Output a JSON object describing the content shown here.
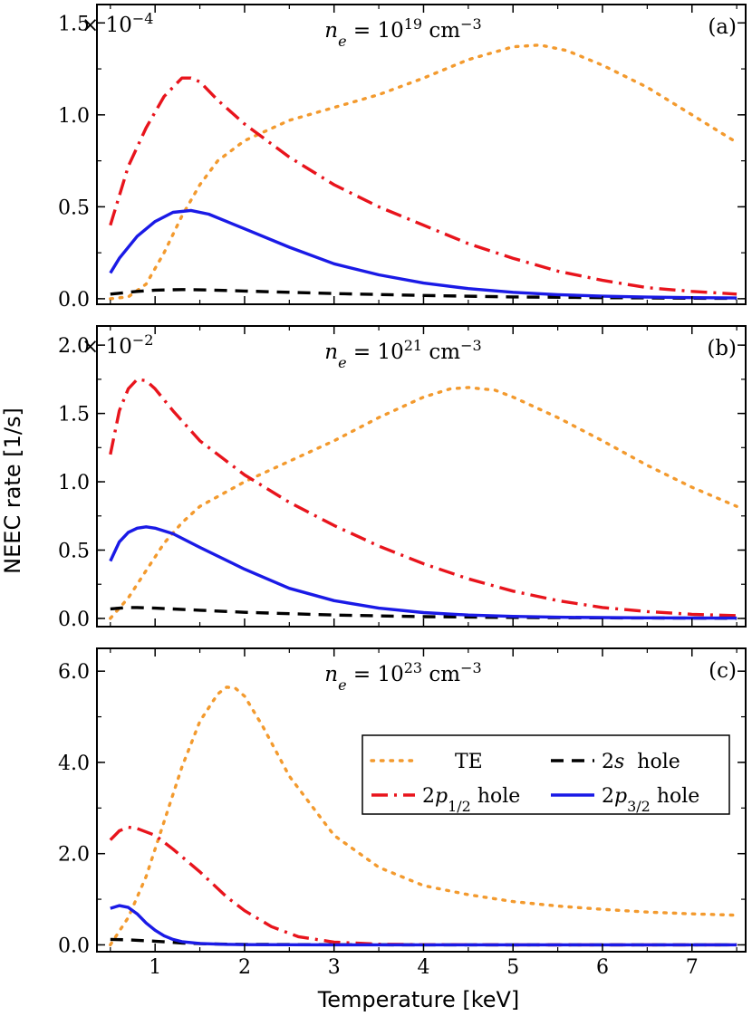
{
  "figure": {
    "xlabel": "Temperature [keV]",
    "ylabel": "NEEC rate [1/s]"
  },
  "legend": [
    {
      "label": "TE",
      "color": "#f39a2e",
      "style": "dotted"
    },
    {
      "label": "2s  hole",
      "color": "#000000",
      "style": "dashed"
    },
    {
      "label": "2p1/2 hole",
      "color": "#e8141c",
      "style": "dashdot"
    },
    {
      "label": "2p3/2 hole",
      "color": "#1a1ae6",
      "style": "solid"
    }
  ],
  "chart_data": [
    {
      "type": "line",
      "panel": "(a)",
      "density_label": "ne = 10^19 cm^-3",
      "multiplier": "× 10^-4",
      "xlim": [
        0.35,
        7.6
      ],
      "ylim": [
        -0.03,
        1.6
      ],
      "x_ticks": [
        1,
        2,
        3,
        4,
        5,
        6,
        7
      ],
      "y_ticks": [
        "0.0",
        "0.5",
        "1.0",
        "1.5"
      ],
      "series": [
        {
          "name": "TE",
          "x": [
            0.5,
            0.7,
            0.9,
            1.1,
            1.3,
            1.5,
            1.7,
            2.0,
            2.5,
            3.0,
            3.5,
            4.0,
            4.5,
            5.0,
            5.3,
            5.6,
            6.0,
            6.5,
            7.0,
            7.5
          ],
          "y": [
            0.0,
            0.01,
            0.08,
            0.25,
            0.45,
            0.62,
            0.75,
            0.86,
            0.97,
            1.04,
            1.11,
            1.2,
            1.3,
            1.37,
            1.38,
            1.35,
            1.27,
            1.15,
            1.0,
            0.85
          ]
        },
        {
          "name": "2s hole",
          "x": [
            0.5,
            0.8,
            1.0,
            1.3,
            1.6,
            2.0,
            3.0,
            4.0,
            5.0,
            6.0,
            7.0,
            7.5
          ],
          "y": [
            0.025,
            0.04,
            0.047,
            0.05,
            0.048,
            0.042,
            0.028,
            0.018,
            0.01,
            0.006,
            0.003,
            0.002
          ]
        },
        {
          "name": "2p1/2 hole",
          "x": [
            0.5,
            0.7,
            0.9,
            1.1,
            1.3,
            1.4,
            1.5,
            1.7,
            2.0,
            2.5,
            3.0,
            3.5,
            4.0,
            4.5,
            5.0,
            5.5,
            6.0,
            6.5,
            7.0,
            7.5
          ],
          "y": [
            0.4,
            0.72,
            0.93,
            1.1,
            1.2,
            1.2,
            1.18,
            1.08,
            0.95,
            0.77,
            0.62,
            0.5,
            0.4,
            0.3,
            0.22,
            0.15,
            0.1,
            0.06,
            0.04,
            0.025
          ]
        },
        {
          "name": "2p3/2 hole",
          "x": [
            0.5,
            0.6,
            0.8,
            1.0,
            1.2,
            1.4,
            1.6,
            2.0,
            2.5,
            3.0,
            3.5,
            4.0,
            4.5,
            5.0,
            5.5,
            6.0,
            6.5,
            7.0,
            7.5
          ],
          "y": [
            0.14,
            0.22,
            0.34,
            0.42,
            0.47,
            0.48,
            0.46,
            0.38,
            0.28,
            0.19,
            0.13,
            0.085,
            0.055,
            0.035,
            0.022,
            0.014,
            0.009,
            0.006,
            0.004
          ]
        }
      ]
    },
    {
      "type": "line",
      "panel": "(b)",
      "density_label": "ne = 10^21 cm^-3",
      "multiplier": "× 10^-2",
      "xlim": [
        0.35,
        7.6
      ],
      "ylim": [
        -0.06,
        2.14
      ],
      "x_ticks": [
        1,
        2,
        3,
        4,
        5,
        6,
        7
      ],
      "y_ticks": [
        "0.0",
        "0.5",
        "1.0",
        "1.5",
        "2.0"
      ],
      "series": [
        {
          "name": "TE",
          "x": [
            0.5,
            0.7,
            0.9,
            1.1,
            1.3,
            1.5,
            2.0,
            2.5,
            3.0,
            3.5,
            4.0,
            4.3,
            4.5,
            4.8,
            5.0,
            5.5,
            6.0,
            6.5,
            7.0,
            7.5
          ],
          "y": [
            0.0,
            0.15,
            0.35,
            0.55,
            0.7,
            0.82,
            1.0,
            1.15,
            1.3,
            1.47,
            1.62,
            1.68,
            1.69,
            1.67,
            1.62,
            1.47,
            1.3,
            1.12,
            0.96,
            0.82
          ]
        },
        {
          "name": "2s hole",
          "x": [
            0.5,
            0.7,
            0.8,
            1.0,
            1.5,
            2.0,
            3.0,
            4.0,
            5.0,
            6.0,
            7.0,
            7.5
          ],
          "y": [
            0.07,
            0.08,
            0.08,
            0.075,
            0.06,
            0.045,
            0.025,
            0.013,
            0.007,
            0.004,
            0.002,
            0.001
          ]
        },
        {
          "name": "2p1/2 hole",
          "x": [
            0.5,
            0.6,
            0.7,
            0.8,
            0.9,
            1.0,
            1.2,
            1.5,
            2.0,
            2.5,
            3.0,
            3.5,
            4.0,
            4.5,
            5.0,
            5.5,
            6.0,
            6.5,
            7.0,
            7.5
          ],
          "y": [
            1.2,
            1.52,
            1.68,
            1.75,
            1.74,
            1.68,
            1.52,
            1.3,
            1.05,
            0.85,
            0.68,
            0.53,
            0.4,
            0.29,
            0.2,
            0.13,
            0.08,
            0.05,
            0.03,
            0.02
          ]
        },
        {
          "name": "2p3/2 hole",
          "x": [
            0.5,
            0.6,
            0.7,
            0.8,
            0.9,
            1.0,
            1.2,
            1.5,
            2.0,
            2.5,
            3.0,
            3.5,
            4.0,
            4.5,
            5.0,
            5.5,
            6.0,
            6.5,
            7.0,
            7.5
          ],
          "y": [
            0.42,
            0.56,
            0.63,
            0.66,
            0.67,
            0.66,
            0.62,
            0.52,
            0.36,
            0.22,
            0.13,
            0.075,
            0.043,
            0.025,
            0.015,
            0.009,
            0.006,
            0.004,
            0.003,
            0.002
          ]
        }
      ]
    },
    {
      "type": "line",
      "panel": "(c)",
      "density_label": "ne = 10^23 cm^-3",
      "multiplier": "",
      "xlim": [
        0.35,
        7.6
      ],
      "ylim": [
        -0.15,
        6.5
      ],
      "x_ticks": [
        1,
        2,
        3,
        4,
        5,
        6,
        7
      ],
      "y_ticks": [
        "0.0",
        "2.0",
        "4.0",
        "6.0"
      ],
      "series": [
        {
          "name": "TE",
          "x": [
            0.5,
            0.7,
            0.9,
            1.1,
            1.3,
            1.5,
            1.7,
            1.8,
            1.9,
            2.0,
            2.2,
            2.5,
            3.0,
            3.5,
            4.0,
            4.5,
            5.0,
            5.5,
            6.0,
            6.5,
            7.0,
            7.5
          ],
          "y": [
            0.0,
            0.6,
            1.5,
            2.7,
            3.9,
            4.9,
            5.5,
            5.65,
            5.62,
            5.45,
            4.8,
            3.7,
            2.4,
            1.7,
            1.3,
            1.1,
            0.95,
            0.85,
            0.78,
            0.72,
            0.68,
            0.65
          ]
        },
        {
          "name": "2s hole",
          "x": [
            0.5,
            0.7,
            1.0,
            1.3,
            1.6,
            2.0,
            3.0,
            4.0,
            5.0,
            6.0,
            7.0,
            7.5
          ],
          "y": [
            0.12,
            0.11,
            0.08,
            0.04,
            0.02,
            0.01,
            0.003,
            0.001,
            0.0,
            0.0,
            0.0,
            0.0
          ]
        },
        {
          "name": "2p1/2 hole",
          "x": [
            0.5,
            0.6,
            0.7,
            0.8,
            1.0,
            1.2,
            1.5,
            1.8,
            2.0,
            2.3,
            2.6,
            3.0,
            3.5,
            4.0,
            5.0,
            6.0,
            7.0,
            7.5
          ],
          "y": [
            2.3,
            2.5,
            2.58,
            2.55,
            2.4,
            2.1,
            1.6,
            1.05,
            0.75,
            0.4,
            0.18,
            0.06,
            0.015,
            0.005,
            0.0,
            0.0,
            0.0,
            0.0
          ]
        },
        {
          "name": "2p3/2 hole",
          "x": [
            0.5,
            0.6,
            0.7,
            0.8,
            0.9,
            1.0,
            1.1,
            1.2,
            1.3,
            1.5,
            1.8,
            2.0,
            3.0,
            4.0,
            5.0,
            6.0,
            7.0,
            7.5
          ],
          "y": [
            0.8,
            0.86,
            0.82,
            0.68,
            0.48,
            0.32,
            0.2,
            0.12,
            0.07,
            0.03,
            0.01,
            0.005,
            0.0,
            0.0,
            0.0,
            0.0,
            0.0,
            0.0
          ]
        }
      ]
    }
  ]
}
